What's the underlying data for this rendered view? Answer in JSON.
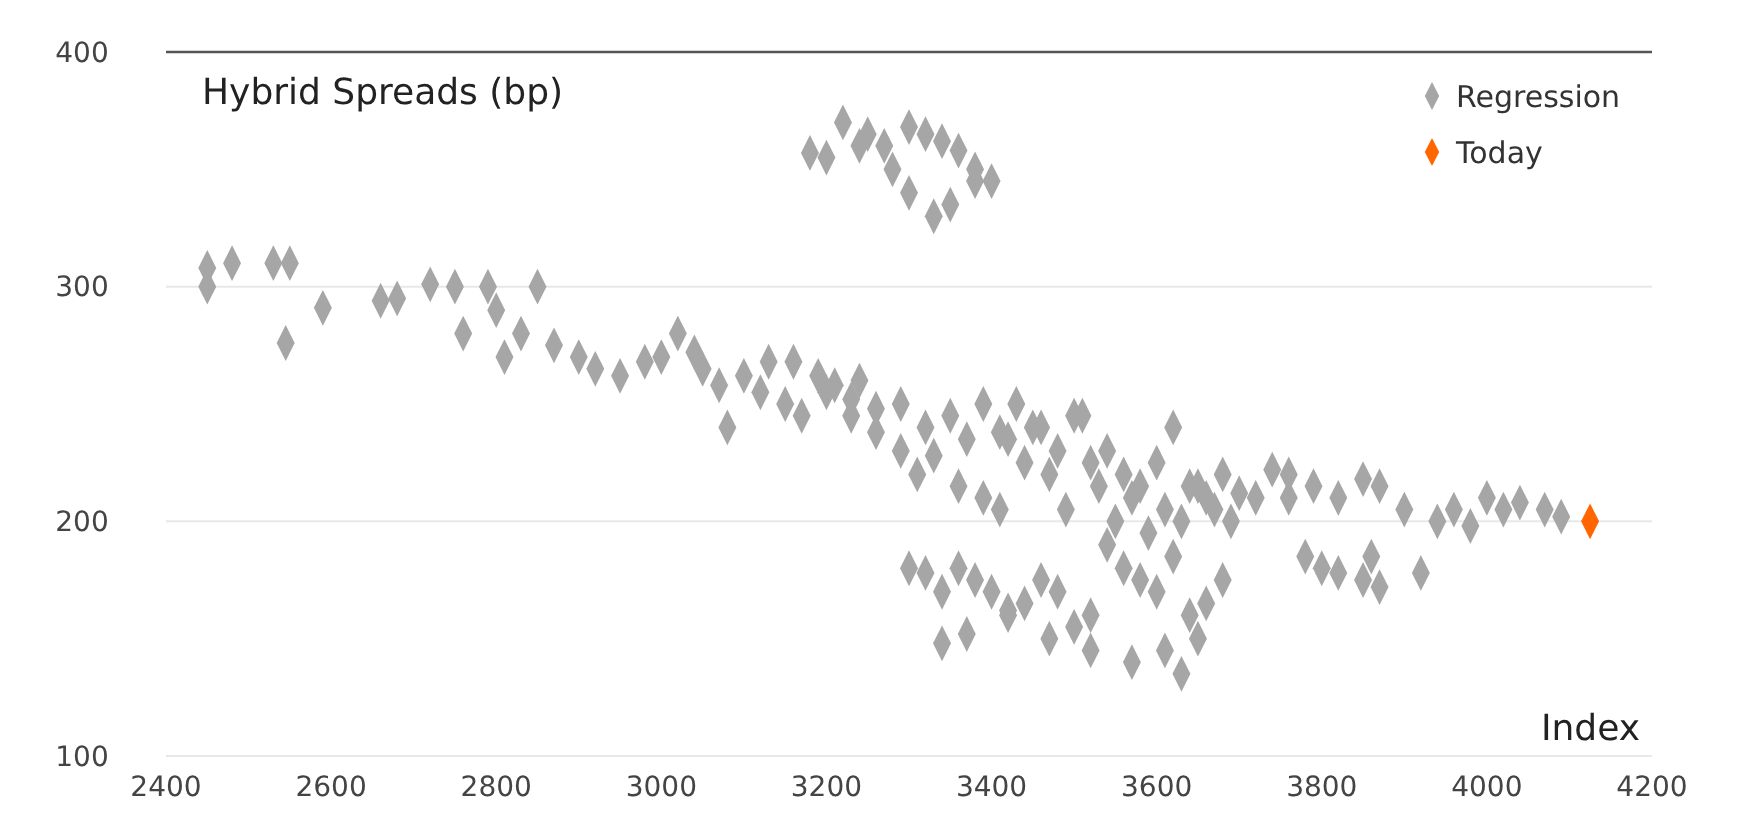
{
  "chart_data": {
    "type": "scatter",
    "xlabel": "Index",
    "ylabel": "Hybrid Spreads (bp)",
    "xlim": [
      2400,
      4200
    ],
    "xticks": [
      2400,
      2600,
      2800,
      3000,
      3200,
      3400,
      3600,
      3800,
      4000,
      4200
    ],
    "ylim": [
      100,
      400
    ],
    "yticks": [
      100,
      200,
      300,
      400
    ],
    "grid": "y",
    "legend": "top right",
    "marker": "diamond",
    "series": [
      {
        "name": "Regression",
        "color": "#a6a6a6",
        "x": [
          2450,
          2450,
          2480,
          2530,
          2550,
          2545,
          2590,
          2660,
          2680,
          2720,
          2750,
          2760,
          2790,
          2800,
          2810,
          2850,
          2830,
          2870,
          2900,
          2920,
          2950,
          2980,
          3000,
          3020,
          3040,
          3050,
          3070,
          3100,
          3120,
          3150,
          3080,
          3130,
          3170,
          3200,
          3230,
          3240,
          3260,
          3290,
          3320,
          3350,
          3370,
          3390,
          3410,
          3300,
          3330,
          3350,
          3280,
          3380,
          3240,
          3180,
          3200,
          3220,
          3250,
          3270,
          3300,
          3320,
          3340,
          3360,
          3380,
          3400,
          3420,
          3440,
          3460,
          3480,
          3500,
          3520,
          3540,
          3560,
          3580,
          3600,
          3620,
          3640,
          3660,
          3680,
          3700,
          3720,
          3160,
          3190,
          3210,
          3230,
          3260,
          3290,
          3310,
          3330,
          3360,
          3390,
          3410,
          3430,
          3450,
          3470,
          3490,
          3510,
          3530,
          3550,
          3570,
          3590,
          3610,
          3630,
          3650,
          3670,
          3690,
          3300,
          3320,
          3340,
          3360,
          3380,
          3400,
          3420,
          3440,
          3460,
          3480,
          3500,
          3520,
          3540,
          3560,
          3580,
          3600,
          3620,
          3640,
          3660,
          3680,
          3340,
          3370,
          3420,
          3470,
          3520,
          3570,
          3610,
          3630,
          3650,
          3740,
          3760,
          3780,
          3800,
          3820,
          3850,
          3870,
          3760,
          3790,
          3820,
          3850,
          3870,
          3900,
          3940,
          3960,
          3980,
          4000,
          4020,
          4040,
          4070,
          4090,
          3920,
          3860
        ],
        "values": [
          308,
          300,
          310,
          310,
          310,
          276,
          291,
          294,
          295,
          301,
          300,
          280,
          300,
          290,
          270,
          300,
          280,
          275,
          270,
          265,
          262,
          268,
          270,
          280,
          272,
          265,
          258,
          262,
          255,
          250,
          240,
          268,
          245,
          255,
          252,
          260,
          248,
          250,
          240,
          245,
          235,
          250,
          238,
          340,
          330,
          335,
          350,
          345,
          360,
          357,
          355,
          370,
          365,
          360,
          368,
          365,
          362,
          358,
          350,
          345,
          235,
          225,
          240,
          230,
          245,
          225,
          230,
          220,
          215,
          225,
          240,
          215,
          210,
          220,
          212,
          210,
          268,
          262,
          258,
          245,
          238,
          230,
          220,
          228,
          215,
          210,
          205,
          250,
          240,
          220,
          205,
          245,
          215,
          200,
          210,
          195,
          205,
          200,
          215,
          205,
          200,
          180,
          178,
          170,
          180,
          175,
          170,
          160,
          165,
          175,
          170,
          155,
          160,
          190,
          180,
          175,
          170,
          185,
          160,
          165,
          175,
          148,
          152,
          162,
          150,
          145,
          140,
          145,
          135,
          150,
          222,
          210,
          185,
          180,
          178,
          175,
          172,
          220,
          215,
          210,
          218,
          215,
          205,
          200,
          205,
          198,
          210,
          205,
          208,
          205,
          202,
          178,
          185
        ]
      },
      {
        "name": "Today",
        "color": "#ff6600",
        "x": [
          4125
        ],
        "values": [
          200
        ]
      }
    ]
  }
}
